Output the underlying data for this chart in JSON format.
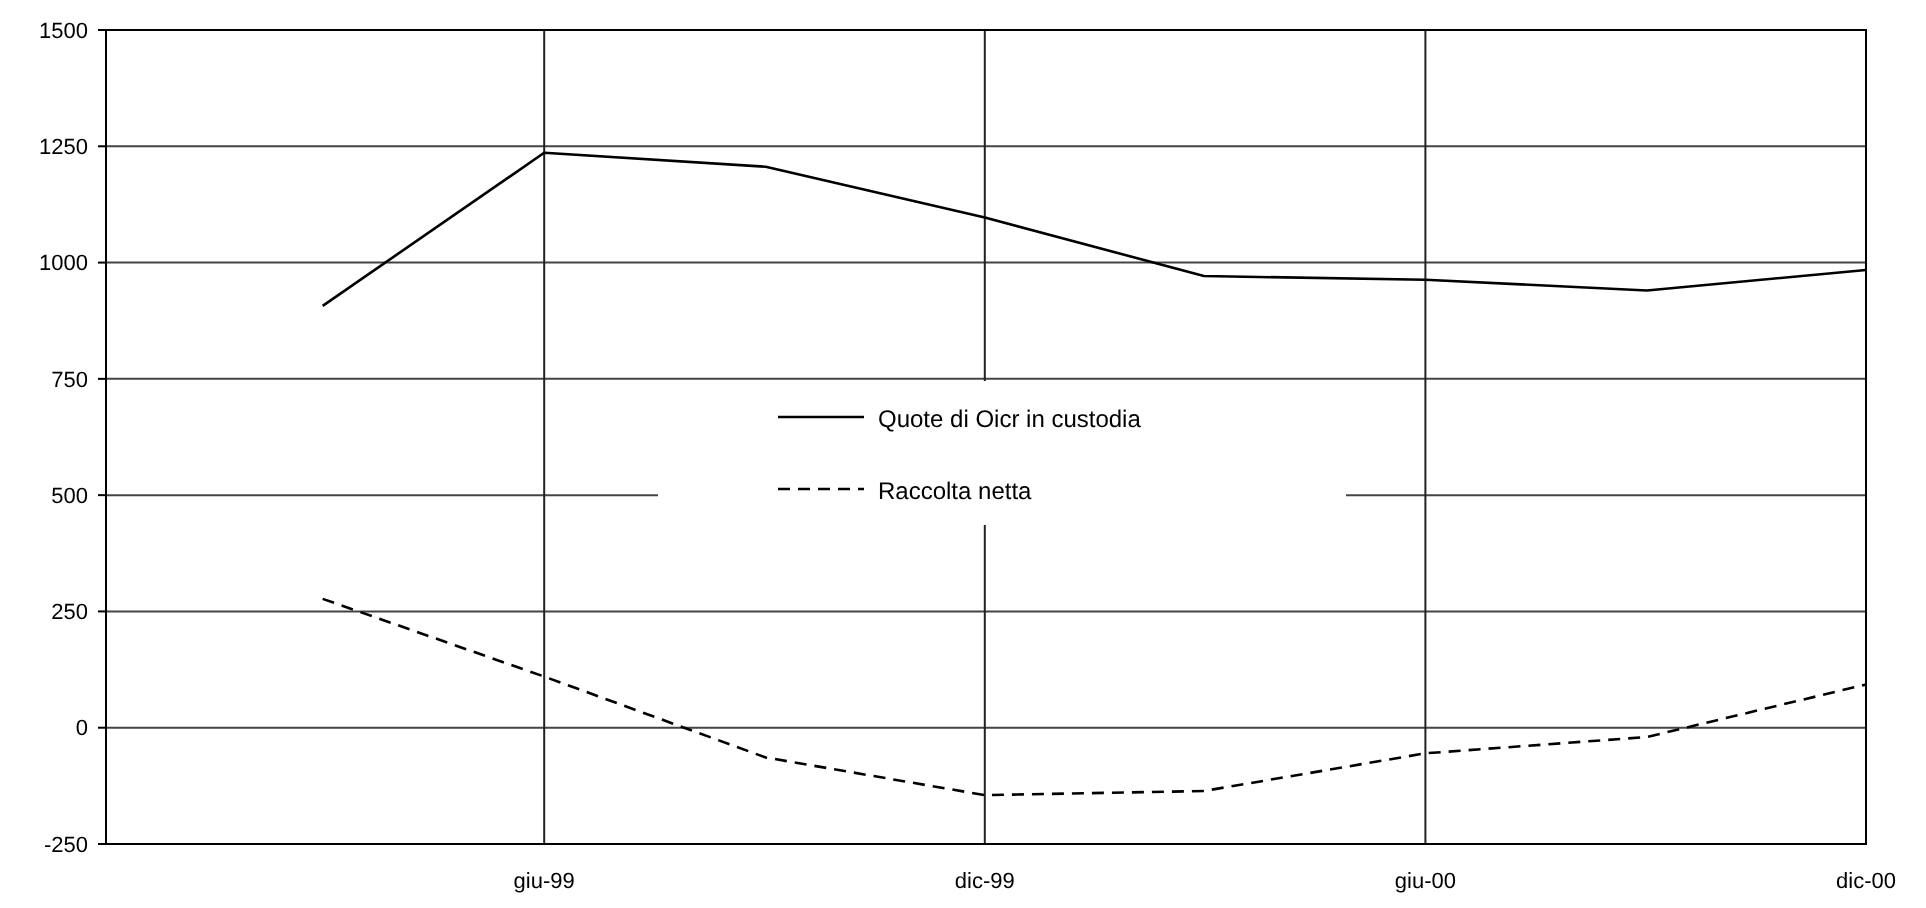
{
  "chart_data": {
    "type": "line",
    "x": [
      "1999-03",
      "1999-06",
      "1999-09",
      "1999-12",
      "2000-03",
      "2000-06",
      "2000-09",
      "2000-12"
    ],
    "series": [
      {
        "name": "Quote di Oicr in custodia",
        "color": "#000000",
        "line_style": "solid",
        "values": [
          907,
          1236,
          1206,
          1097,
          971,
          963,
          940,
          984
        ]
      },
      {
        "name": "Raccolta netta",
        "color": "#000000",
        "line_style": "dashed",
        "values": [
          277,
          110,
          -64,
          -145,
          -136,
          -55,
          -20,
          93
        ]
      }
    ],
    "xlim": [
      "1998-12",
      "2000-12"
    ],
    "xticks": [
      {
        "value": "1999-06",
        "label": "giu-99"
      },
      {
        "value": "1999-12",
        "label": "dic-99"
      },
      {
        "value": "2000-06",
        "label": "giu-00"
      },
      {
        "value": "2000-12",
        "label": "dic-00"
      }
    ],
    "ylim": [
      -250,
      1500
    ],
    "yticks": [
      -250,
      0,
      250,
      500,
      750,
      1000,
      1250,
      1500
    ],
    "grid": true,
    "legend": "center",
    "marker": "none"
  }
}
